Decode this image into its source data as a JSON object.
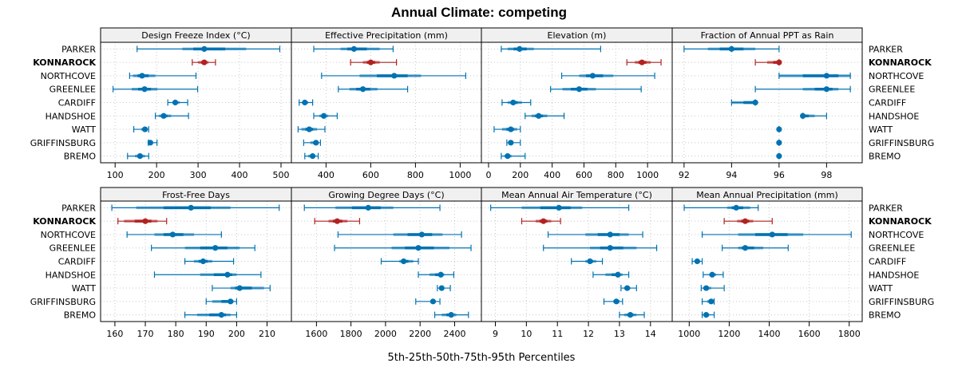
{
  "chart_data": {
    "type": "dotplot-percentile",
    "title": "Annual Climate: competing",
    "xlabel": "5th-25th-50th-75th-95th Percentiles",
    "percentiles": [
      "5th",
      "25th",
      "50th",
      "75th",
      "95th"
    ],
    "sites": [
      "PARKER",
      "KONNAROCK",
      "NORTHCOVE",
      "GREENLEE",
      "CARDIFF",
      "HANDSHOE",
      "WATT",
      "GRIFFINSBURG",
      "BREMO"
    ],
    "highlight_site": "KONNAROCK",
    "colors": {
      "default": "#0072b2",
      "highlight": "#b22222",
      "strip_bg": "#f0f0f0",
      "grid": "#c8c8c8"
    },
    "grid": true,
    "panels": [
      {
        "title": "Design Freeze Index (°C)",
        "xlim": [
          65,
          525
        ],
        "ticks": [
          100,
          200,
          300,
          400,
          500
        ],
        "values": [
          [
            153,
            262,
            315,
            416,
            497
          ],
          [
            286,
            300,
            315,
            325,
            342
          ],
          [
            135,
            143,
            165,
            197,
            295
          ],
          [
            95,
            140,
            171,
            202,
            299
          ],
          [
            227,
            239,
            245,
            256,
            275
          ],
          [
            197,
            206,
            217,
            235,
            277
          ],
          [
            145,
            163,
            172,
            178,
            181
          ],
          [
            180,
            183,
            185,
            190,
            201
          ],
          [
            130,
            148,
            160,
            172,
            181
          ]
        ]
      },
      {
        "title": "Effective Precipitation (mm)",
        "xlim": [
          245,
          1095
        ],
        "ticks": [
          400,
          600,
          800,
          1000
        ],
        "values": [
          [
            345,
            465,
            525,
            640,
            700
          ],
          [
            510,
            565,
            600,
            640,
            715
          ],
          [
            380,
            550,
            705,
            825,
            1025
          ],
          [
            455,
            505,
            565,
            630,
            765
          ],
          [
            280,
            295,
            305,
            320,
            340
          ],
          [
            345,
            370,
            390,
            410,
            450
          ],
          [
            275,
            290,
            325,
            360,
            395
          ],
          [
            300,
            330,
            355,
            365,
            375
          ],
          [
            305,
            320,
            340,
            350,
            365
          ]
        ]
      },
      {
        "title": "Elevation (m)",
        "xlim": [
          -45,
          1155
        ],
        "ticks": [
          0,
          200,
          400,
          600,
          800,
          1000
        ],
        "values": [
          [
            80,
            120,
            195,
            285,
            705
          ],
          [
            870,
            920,
            965,
            1020,
            1085
          ],
          [
            460,
            570,
            655,
            785,
            1045
          ],
          [
            390,
            465,
            570,
            675,
            960
          ],
          [
            85,
            120,
            155,
            210,
            265
          ],
          [
            230,
            270,
            315,
            370,
            475
          ],
          [
            35,
            85,
            140,
            180,
            200
          ],
          [
            115,
            130,
            140,
            155,
            200
          ],
          [
            80,
            100,
            120,
            145,
            230
          ]
        ]
      },
      {
        "title": "Fraction of Annual PPT as Rain",
        "xlim": [
          91.5,
          99.5
        ],
        "ticks": [
          92,
          94,
          96,
          98
        ],
        "values": [
          [
            92,
            93,
            94,
            95,
            96
          ],
          [
            95,
            95.5,
            96,
            96,
            96
          ],
          [
            96,
            96,
            98,
            99,
            99
          ],
          [
            95,
            97,
            98,
            98.5,
            99
          ],
          [
            94,
            94,
            95,
            95,
            95
          ],
          [
            97,
            97,
            97,
            97.5,
            98
          ],
          [
            96,
            96,
            96,
            96,
            96
          ],
          [
            96,
            96,
            96,
            96,
            96
          ],
          [
            96,
            96,
            96,
            96,
            96
          ]
        ]
      },
      {
        "title": "Frost-Free Days",
        "xlim": [
          155.3,
          218
        ],
        "ticks": [
          160,
          170,
          180,
          190,
          200,
          210
        ],
        "values": [
          [
            159,
            167,
            185,
            198,
            214
          ],
          [
            161,
            163,
            170,
            174,
            177
          ],
          [
            164,
            173,
            179,
            186,
            195
          ],
          [
            172,
            183,
            193,
            201,
            206
          ],
          [
            183,
            186,
            189,
            192,
            199
          ],
          [
            173,
            188,
            197,
            200,
            208
          ],
          [
            192,
            198,
            201,
            209,
            211
          ],
          [
            190,
            192,
            198,
            199,
            200
          ],
          [
            183,
            187,
            195,
            198,
            200
          ]
        ]
      },
      {
        "title": "Growing Degree Days (°C)",
        "xlim": [
          1455,
          2555
        ],
        "ticks": [
          1600,
          1800,
          2000,
          2200,
          2400
        ],
        "values": [
          [
            1530,
            1710,
            1900,
            2045,
            2315
          ],
          [
            1590,
            1670,
            1720,
            1780,
            1850
          ],
          [
            1725,
            2045,
            2210,
            2330,
            2440
          ],
          [
            1705,
            2035,
            2190,
            2370,
            2495
          ],
          [
            1975,
            2080,
            2105,
            2160,
            2190
          ],
          [
            2190,
            2255,
            2320,
            2340,
            2395
          ],
          [
            2300,
            2315,
            2325,
            2340,
            2375
          ],
          [
            2175,
            2265,
            2275,
            2290,
            2315
          ],
          [
            2285,
            2325,
            2380,
            2410,
            2480
          ]
        ]
      },
      {
        "title": "Mean Annual Air Temperature (°C)",
        "xlim": [
          8.55,
          14.7
        ],
        "ticks": [
          9,
          10,
          11,
          12,
          13,
          14
        ],
        "values": [
          [
            8.85,
            9.85,
            11.05,
            11.8,
            13.3
          ],
          [
            9.85,
            10.3,
            10.55,
            10.8,
            11.1
          ],
          [
            10.7,
            11.9,
            12.7,
            13.3,
            13.75
          ],
          [
            10.55,
            12.05,
            12.7,
            13.55,
            14.2
          ],
          [
            11.45,
            11.9,
            12.05,
            12.25,
            12.45
          ],
          [
            12.15,
            12.55,
            12.95,
            13.1,
            13.3
          ],
          [
            13.05,
            13.15,
            13.25,
            13.35,
            13.55
          ],
          [
            12.5,
            12.8,
            12.9,
            13.0,
            13.1
          ],
          [
            13.0,
            13.15,
            13.35,
            13.55,
            13.8
          ]
        ]
      },
      {
        "title": "Mean Annual Precipitation (mm)",
        "xlim": [
          915,
          1865
        ],
        "ticks": [
          1000,
          1200,
          1400,
          1600,
          1800
        ],
        "values": [
          [
            975,
            1190,
            1235,
            1305,
            1345
          ],
          [
            1175,
            1240,
            1280,
            1320,
            1415
          ],
          [
            1065,
            1245,
            1415,
            1570,
            1810
          ],
          [
            1165,
            1245,
            1280,
            1370,
            1495
          ],
          [
            1015,
            1030,
            1040,
            1055,
            1065
          ],
          [
            1070,
            1100,
            1115,
            1135,
            1170
          ],
          [
            1060,
            1070,
            1085,
            1110,
            1175
          ],
          [
            1065,
            1090,
            1110,
            1120,
            1125
          ],
          [
            1065,
            1075,
            1085,
            1100,
            1125
          ]
        ]
      }
    ]
  }
}
